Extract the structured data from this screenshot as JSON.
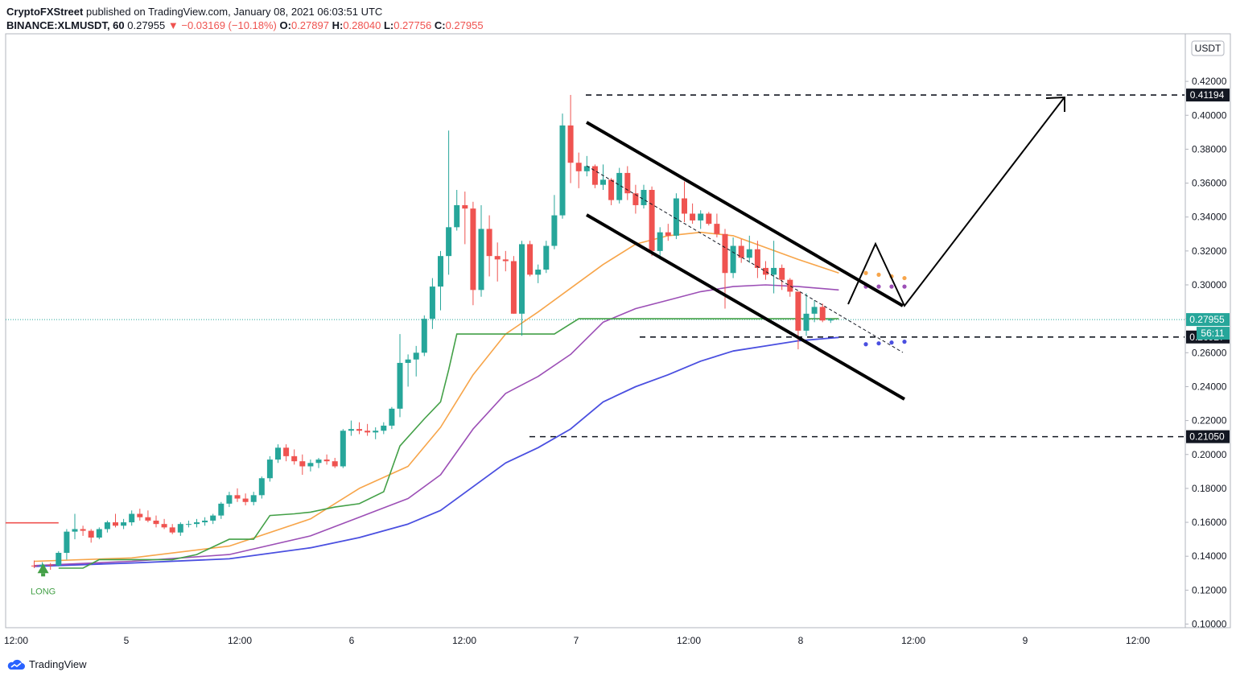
{
  "header": {
    "publisher": "CryptoFXStreet",
    "published_text": "published on TradingView.com, January 08, 2021 06:03:51 UTC",
    "symbol": "BINANCE:XLMUSDT, 60",
    "last": "0.27955",
    "change": "▼ −0.03169 (−10.18%)",
    "o_label": "O:",
    "o": "0.27897",
    "h_label": "H:",
    "h": "0.28040",
    "l_label": "L:",
    "l": "0.27756",
    "c_label": "C:",
    "c": "0.27955"
  },
  "footer": {
    "brand": "TradingView",
    "logo_icon": "tradingview-cloud-icon"
  },
  "colors": {
    "up": "#26a69a",
    "down": "#ef5350",
    "ema_orange": "#f7a54a",
    "ema_purple": "#9c4fb6",
    "ema_blue": "#4a4fe0",
    "supertrend_green": "#43a047",
    "supertrend_red": "#ef5350"
  },
  "chart_data": {
    "type": "candlestick",
    "currency_label": "USDT",
    "y_ticks": [
      "0.42000",
      "0.40000",
      "0.38000",
      "0.36000",
      "0.34000",
      "0.32000",
      "0.30000",
      "0.28000",
      "0.26000",
      "0.24000",
      "0.22000",
      "0.20000",
      "0.18000",
      "0.16000",
      "0.14000",
      "0.12000",
      "0.10000"
    ],
    "ylim": [
      0.1,
      0.42
    ],
    "x_ticks": [
      "12:00",
      "5",
      "12:00",
      "6",
      "12:00",
      "7",
      "12:00",
      "8",
      "12:00",
      "9",
      "12:00"
    ],
    "price_labels": [
      {
        "value": 0.41194,
        "text": "0.41194",
        "style": "dark"
      },
      {
        "value": 0.27955,
        "text": "0.27955",
        "style": "teal"
      },
      {
        "value": 0.26927,
        "text": "0.26927",
        "style": "dark"
      },
      {
        "value": 0.2105,
        "text": "0.21050",
        "style": "dark"
      }
    ],
    "countdown": "56:11",
    "signal_label": "LONG",
    "levels": [
      0.41194,
      0.26927,
      0.2105
    ],
    "candles": [
      [
        0.1345,
        0.1375,
        0.133,
        0.134
      ],
      [
        0.134,
        0.1365,
        0.133,
        0.135
      ],
      [
        0.135,
        0.136,
        0.132,
        0.1345
      ],
      [
        0.1345,
        0.143,
        0.134,
        0.142
      ],
      [
        0.142,
        0.156,
        0.138,
        0.1545
      ],
      [
        0.1545,
        0.165,
        0.15,
        0.156
      ],
      [
        0.156,
        0.158,
        0.152,
        0.155
      ],
      [
        0.155,
        0.156,
        0.148,
        0.151
      ],
      [
        0.151,
        0.157,
        0.15,
        0.156
      ],
      [
        0.156,
        0.161,
        0.154,
        0.16
      ],
      [
        0.16,
        0.165,
        0.157,
        0.158
      ],
      [
        0.158,
        0.162,
        0.156,
        0.16
      ],
      [
        0.16,
        0.167,
        0.158,
        0.165
      ],
      [
        0.165,
        0.168,
        0.161,
        0.163
      ],
      [
        0.163,
        0.167,
        0.16,
        0.161
      ],
      [
        0.161,
        0.164,
        0.157,
        0.159
      ],
      [
        0.159,
        0.162,
        0.156,
        0.157
      ],
      [
        0.157,
        0.159,
        0.153,
        0.154
      ],
      [
        0.154,
        0.16,
        0.152,
        0.159
      ],
      [
        0.159,
        0.161,
        0.157,
        0.159
      ],
      [
        0.159,
        0.162,
        0.157,
        0.16
      ],
      [
        0.16,
        0.163,
        0.158,
        0.161
      ],
      [
        0.161,
        0.165,
        0.159,
        0.164
      ],
      [
        0.164,
        0.172,
        0.162,
        0.171
      ],
      [
        0.171,
        0.178,
        0.169,
        0.176
      ],
      [
        0.176,
        0.18,
        0.172,
        0.174
      ],
      [
        0.174,
        0.177,
        0.17,
        0.172
      ],
      [
        0.172,
        0.178,
        0.17,
        0.176
      ],
      [
        0.176,
        0.187,
        0.174,
        0.186
      ],
      [
        0.186,
        0.199,
        0.184,
        0.197
      ],
      [
        0.197,
        0.206,
        0.195,
        0.204
      ],
      [
        0.204,
        0.206,
        0.196,
        0.199
      ],
      [
        0.199,
        0.203,
        0.194,
        0.196
      ],
      [
        0.196,
        0.2,
        0.188,
        0.193
      ],
      [
        0.193,
        0.197,
        0.19,
        0.195
      ],
      [
        0.195,
        0.198,
        0.192,
        0.197
      ],
      [
        0.197,
        0.2,
        0.194,
        0.196
      ],
      [
        0.196,
        0.198,
        0.192,
        0.193
      ],
      [
        0.193,
        0.215,
        0.192,
        0.214
      ],
      [
        0.214,
        0.22,
        0.211,
        0.215
      ],
      [
        0.215,
        0.219,
        0.212,
        0.214
      ],
      [
        0.214,
        0.218,
        0.211,
        0.213
      ],
      [
        0.213,
        0.216,
        0.209,
        0.214
      ],
      [
        0.214,
        0.219,
        0.212,
        0.217
      ],
      [
        0.217,
        0.228,
        0.215,
        0.227
      ],
      [
        0.227,
        0.271,
        0.222,
        0.254
      ],
      [
        0.254,
        0.259,
        0.24,
        0.256
      ],
      [
        0.256,
        0.264,
        0.246,
        0.26
      ],
      [
        0.26,
        0.282,
        0.258,
        0.28
      ],
      [
        0.28,
        0.304,
        0.274,
        0.299
      ],
      [
        0.299,
        0.32,
        0.285,
        0.317
      ],
      [
        0.317,
        0.391,
        0.306,
        0.334
      ],
      [
        0.334,
        0.356,
        0.332,
        0.347
      ],
      [
        0.347,
        0.355,
        0.324,
        0.345
      ],
      [
        0.345,
        0.349,
        0.288,
        0.297
      ],
      [
        0.297,
        0.347,
        0.293,
        0.333
      ],
      [
        0.333,
        0.341,
        0.305,
        0.317
      ],
      [
        0.317,
        0.325,
        0.302,
        0.315
      ],
      [
        0.315,
        0.32,
        0.308,
        0.314
      ],
      [
        0.314,
        0.317,
        0.283,
        0.283
      ],
      [
        0.283,
        0.326,
        0.27,
        0.324
      ],
      [
        0.324,
        0.326,
        0.305,
        0.306
      ],
      [
        0.306,
        0.312,
        0.301,
        0.309
      ],
      [
        0.309,
        0.326,
        0.307,
        0.323
      ],
      [
        0.323,
        0.353,
        0.321,
        0.341
      ],
      [
        0.341,
        0.401,
        0.339,
        0.394
      ],
      [
        0.394,
        0.412,
        0.36,
        0.372
      ],
      [
        0.372,
        0.378,
        0.357,
        0.367
      ],
      [
        0.367,
        0.376,
        0.364,
        0.37
      ],
      [
        0.37,
        0.371,
        0.357,
        0.359
      ],
      [
        0.359,
        0.371,
        0.356,
        0.362
      ],
      [
        0.362,
        0.363,
        0.347,
        0.35
      ],
      [
        0.35,
        0.369,
        0.348,
        0.366
      ],
      [
        0.366,
        0.37,
        0.35,
        0.354
      ],
      [
        0.354,
        0.359,
        0.342,
        0.347
      ],
      [
        0.347,
        0.359,
        0.345,
        0.356
      ],
      [
        0.356,
        0.358,
        0.317,
        0.32
      ],
      [
        0.32,
        0.334,
        0.315,
        0.331
      ],
      [
        0.331,
        0.336,
        0.326,
        0.329
      ],
      [
        0.329,
        0.354,
        0.327,
        0.351
      ],
      [
        0.351,
        0.361,
        0.337,
        0.342
      ],
      [
        0.342,
        0.348,
        0.336,
        0.338
      ],
      [
        0.338,
        0.344,
        0.333,
        0.342
      ],
      [
        0.342,
        0.343,
        0.335,
        0.336
      ],
      [
        0.336,
        0.342,
        0.328,
        0.33
      ],
      [
        0.33,
        0.333,
        0.286,
        0.307
      ],
      [
        0.307,
        0.328,
        0.304,
        0.323
      ],
      [
        0.323,
        0.327,
        0.313,
        0.316
      ],
      [
        0.316,
        0.329,
        0.313,
        0.321
      ],
      [
        0.321,
        0.326,
        0.304,
        0.31
      ],
      [
        0.31,
        0.314,
        0.303,
        0.306
      ],
      [
        0.306,
        0.326,
        0.295,
        0.31
      ],
      [
        0.31,
        0.312,
        0.297,
        0.303
      ],
      [
        0.303,
        0.304,
        0.293,
        0.296
      ],
      [
        0.296,
        0.296,
        0.262,
        0.273
      ],
      [
        0.273,
        0.295,
        0.27,
        0.283
      ],
      [
        0.283,
        0.291,
        0.278,
        0.287
      ],
      [
        0.287,
        0.289,
        0.278,
        0.279
      ],
      [
        0.27897,
        0.2804,
        0.27756,
        0.27955
      ]
    ],
    "ema_orange": [
      [
        0,
        0.137
      ],
      [
        12,
        0.139
      ],
      [
        24,
        0.146
      ],
      [
        34,
        0.162
      ],
      [
        40,
        0.18
      ],
      [
        46,
        0.193
      ],
      [
        50,
        0.216
      ],
      [
        54,
        0.247
      ],
      [
        58,
        0.271
      ],
      [
        62,
        0.284
      ],
      [
        66,
        0.298
      ],
      [
        70,
        0.312
      ],
      [
        74,
        0.324
      ],
      [
        78,
        0.329
      ],
      [
        82,
        0.331
      ],
      [
        86,
        0.329
      ],
      [
        90,
        0.322
      ],
      [
        94,
        0.315
      ],
      [
        99,
        0.307
      ]
    ],
    "ema_purple": [
      [
        0,
        0.1345
      ],
      [
        12,
        0.137
      ],
      [
        24,
        0.141
      ],
      [
        34,
        0.152
      ],
      [
        40,
        0.163
      ],
      [
        46,
        0.174
      ],
      [
        50,
        0.188
      ],
      [
        54,
        0.215
      ],
      [
        58,
        0.236
      ],
      [
        62,
        0.246
      ],
      [
        66,
        0.259
      ],
      [
        70,
        0.278
      ],
      [
        74,
        0.286
      ],
      [
        78,
        0.291
      ],
      [
        82,
        0.296
      ],
      [
        86,
        0.299
      ],
      [
        90,
        0.3
      ],
      [
        94,
        0.299
      ],
      [
        99,
        0.297
      ]
    ],
    "ema_blue": [
      [
        0,
        0.134
      ],
      [
        12,
        0.136
      ],
      [
        24,
        0.1385
      ],
      [
        34,
        0.145
      ],
      [
        40,
        0.151
      ],
      [
        46,
        0.159
      ],
      [
        50,
        0.167
      ],
      [
        54,
        0.181
      ],
      [
        58,
        0.195
      ],
      [
        62,
        0.204
      ],
      [
        66,
        0.215
      ],
      [
        70,
        0.231
      ],
      [
        74,
        0.24
      ],
      [
        78,
        0.247
      ],
      [
        82,
        0.255
      ],
      [
        86,
        0.261
      ],
      [
        90,
        0.264
      ],
      [
        94,
        0.267
      ],
      [
        99,
        0.269
      ]
    ],
    "supertrend_red": [
      [
        0,
        0.154
      ],
      [
        3,
        0.154
      ]
    ],
    "supertrend_green": [
      [
        3,
        0.133
      ],
      [
        4,
        0.133
      ],
      [
        6,
        0.133
      ],
      [
        8,
        0.138
      ],
      [
        15,
        0.138
      ],
      [
        17,
        0.138
      ],
      [
        20,
        0.141
      ],
      [
        24,
        0.15
      ],
      [
        27,
        0.15
      ],
      [
        29,
        0.164
      ],
      [
        32,
        0.165
      ],
      [
        34,
        0.166
      ],
      [
        37,
        0.169
      ],
      [
        40,
        0.171
      ],
      [
        43,
        0.178
      ],
      [
        45,
        0.205
      ],
      [
        48,
        0.221
      ],
      [
        50,
        0.231
      ],
      [
        51,
        0.25
      ],
      [
        52,
        0.271
      ],
      [
        58,
        0.271
      ],
      [
        64,
        0.271
      ],
      [
        67,
        0.28
      ],
      [
        80,
        0.28
      ],
      [
        90,
        0.28
      ],
      [
        99,
        0.28
      ]
    ],
    "forecast_dots": {
      "orange": [
        [
          100,
          0.307
        ],
        [
          101,
          0.306
        ],
        [
          102,
          0.305
        ],
        [
          103,
          0.304
        ]
      ],
      "purple": [
        [
          100,
          0.299
        ],
        [
          101,
          0.299
        ],
        [
          102,
          0.299
        ],
        [
          103,
          0.299
        ]
      ],
      "blue": [
        [
          100,
          0.265
        ],
        [
          101,
          0.2655
        ],
        [
          102,
          0.266
        ],
        [
          103,
          0.2665
        ]
      ]
    }
  }
}
